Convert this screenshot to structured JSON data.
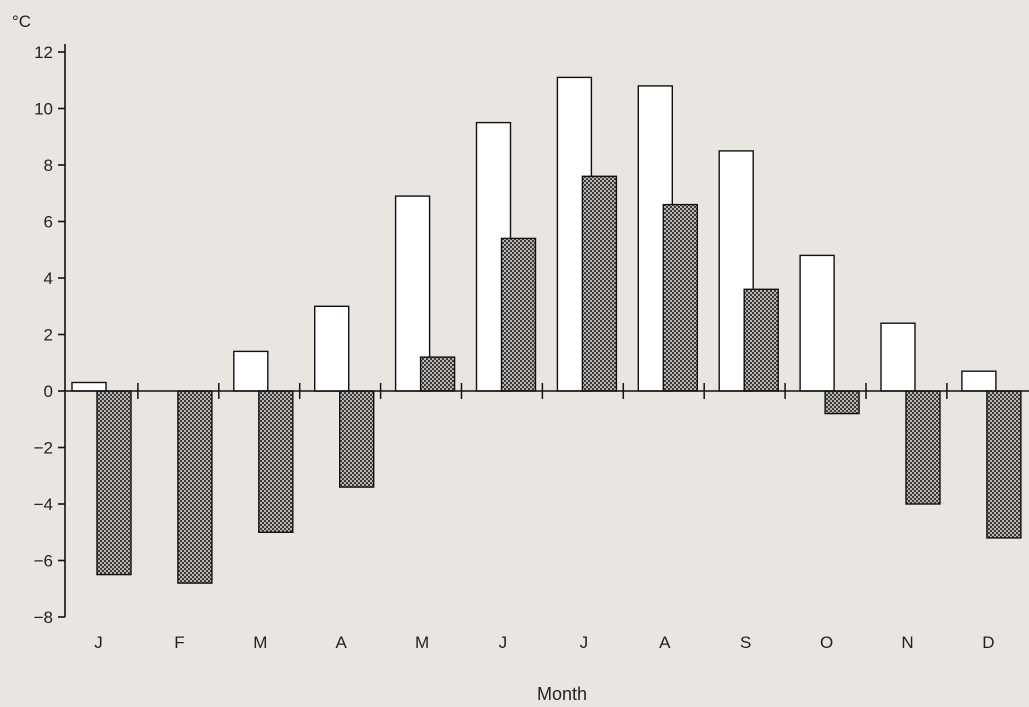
{
  "chart_data": {
    "type": "bar",
    "title": "",
    "xlabel": "Month",
    "ylabel": "°C",
    "ylim": [
      -8,
      12
    ],
    "yticks": [
      12,
      10,
      8,
      6,
      4,
      2,
      0,
      -2,
      -4,
      -6,
      -8
    ],
    "ytick_labels": [
      "12",
      "10",
      "8",
      "6",
      "4",
      "2",
      "0",
      "−2",
      "−4",
      "−6",
      "−8"
    ],
    "categories": [
      "J",
      "F",
      "M",
      "A",
      "M",
      "J",
      "J",
      "A",
      "S",
      "O",
      "N",
      "D"
    ],
    "grid": false,
    "series": [
      {
        "fill": "#ffffff",
        "pattern": "none",
        "values": [
          0.3,
          0.0,
          1.4,
          3.0,
          6.9,
          9.5,
          11.1,
          10.8,
          8.5,
          4.8,
          2.4,
          0.7
        ]
      },
      {
        "fill": "#8a8a8a",
        "pattern": "crosshatch-stipple",
        "values": [
          -6.5,
          -6.8,
          -5.0,
          -3.4,
          1.2,
          5.4,
          7.6,
          6.6,
          3.6,
          -0.8,
          -4.0,
          -5.2
        ]
      }
    ]
  }
}
